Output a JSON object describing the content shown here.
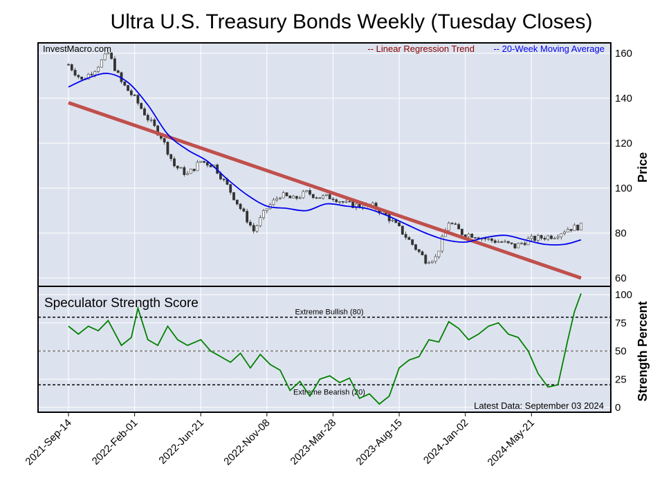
{
  "chart_data": [
    {
      "type": "candlestick",
      "title": "Ultra U.S. Treasury Bonds Weekly (Tuesday Closes)",
      "source_label": "InvestMacro.com",
      "ylabel": "Price",
      "ylim": [
        56,
        165
      ],
      "yticks": [
        60,
        80,
        100,
        120,
        140,
        160
      ],
      "legend_position": "top-right",
      "legend": {
        "regression": "-- Linear Regression Trend",
        "moving_average": "-- 20-Week Moving Average"
      },
      "colors": {
        "regression": "#c0504d",
        "moving_average": "#0000ee",
        "candle_up": "#ffffff",
        "candle_down": "#333333",
        "background": "#dde3ee"
      },
      "regression_line": {
        "start": [
          "2021-09-14",
          138
        ],
        "end": [
          "2024-09-03",
          60
        ]
      },
      "price_points": [
        [
          "2021-09-14",
          155
        ],
        [
          "2021-10-12",
          148
        ],
        [
          "2021-11-09",
          153
        ],
        [
          "2021-12-07",
          160
        ],
        [
          "2022-01-04",
          147
        ],
        [
          "2022-02-01",
          140
        ],
        [
          "2022-03-01",
          131
        ],
        [
          "2022-03-29",
          123
        ],
        [
          "2022-04-26",
          110
        ],
        [
          "2022-05-24",
          106
        ],
        [
          "2022-06-21",
          112
        ],
        [
          "2022-07-19",
          110
        ],
        [
          "2022-08-16",
          101
        ],
        [
          "2022-09-13",
          91
        ],
        [
          "2022-10-11",
          81
        ],
        [
          "2022-11-08",
          91
        ],
        [
          "2022-12-06",
          97
        ],
        [
          "2023-01-03",
          95
        ],
        [
          "2023-01-31",
          98
        ],
        [
          "2023-02-28",
          96
        ],
        [
          "2023-03-28",
          96
        ],
        [
          "2023-04-25",
          93
        ],
        [
          "2023-05-23",
          92
        ],
        [
          "2023-06-20",
          92
        ],
        [
          "2023-07-18",
          88
        ],
        [
          "2023-08-15",
          82
        ],
        [
          "2023-09-12",
          75
        ],
        [
          "2023-10-10",
          68
        ],
        [
          "2023-10-31",
          69
        ],
        [
          "2023-11-28",
          85
        ],
        [
          "2023-12-26",
          80
        ],
        [
          "2024-01-23",
          79
        ],
        [
          "2024-02-20",
          77
        ],
        [
          "2024-03-19",
          76
        ],
        [
          "2024-04-16",
          74
        ],
        [
          "2024-05-14",
          77
        ],
        [
          "2024-06-11",
          78
        ],
        [
          "2024-07-09",
          79
        ],
        [
          "2024-08-06",
          82
        ],
        [
          "2024-09-03",
          83
        ]
      ],
      "moving_average": [
        [
          "2021-09-14",
          145
        ],
        [
          "2021-10-26",
          149
        ],
        [
          "2021-12-07",
          151
        ],
        [
          "2022-01-18",
          147
        ],
        [
          "2022-03-01",
          137
        ],
        [
          "2022-04-12",
          124
        ],
        [
          "2022-05-24",
          117
        ],
        [
          "2022-07-05",
          112
        ],
        [
          "2022-08-16",
          104
        ],
        [
          "2022-09-27",
          97
        ],
        [
          "2022-11-08",
          92
        ],
        [
          "2022-12-20",
          91
        ],
        [
          "2023-01-31",
          90
        ],
        [
          "2023-03-14",
          93
        ],
        [
          "2023-04-25",
          92
        ],
        [
          "2023-06-06",
          91
        ],
        [
          "2023-07-18",
          88
        ],
        [
          "2023-08-29",
          84
        ],
        [
          "2023-10-10",
          80
        ],
        [
          "2023-11-21",
          77
        ],
        [
          "2024-01-02",
          76
        ],
        [
          "2024-02-13",
          78
        ],
        [
          "2024-03-26",
          79
        ],
        [
          "2024-05-07",
          77
        ],
        [
          "2024-06-18",
          75
        ],
        [
          "2024-07-30",
          75
        ],
        [
          "2024-09-03",
          77
        ]
      ]
    },
    {
      "type": "line",
      "title": "Speculator Strength Score",
      "ylabel": "Strength Percent",
      "ylim": [
        -5,
        105
      ],
      "yticks": [
        0,
        25,
        50,
        75,
        100
      ],
      "reference_lines": [
        {
          "label": "Extreme Bullish (80)",
          "value": 80,
          "style": "dashed",
          "color": "#000000"
        },
        {
          "label": "",
          "value": 50,
          "style": "dashed",
          "color": "#777777"
        },
        {
          "label": "Extreme Bearish (20)",
          "value": 20,
          "style": "dashed",
          "color": "#000000"
        }
      ],
      "note": "Latest Data: September 03 2024",
      "colors": {
        "line": "#008000"
      },
      "series": [
        {
          "values": [
            [
              "2021-09-14",
              72
            ],
            [
              "2021-10-05",
              65
            ],
            [
              "2021-10-26",
              72
            ],
            [
              "2021-11-16",
              68
            ],
            [
              "2021-12-07",
              77
            ],
            [
              "2022-01-04",
              55
            ],
            [
              "2022-01-25",
              62
            ],
            [
              "2022-02-08",
              88
            ],
            [
              "2022-03-01",
              60
            ],
            [
              "2022-03-22",
              55
            ],
            [
              "2022-04-12",
              72
            ],
            [
              "2022-05-03",
              60
            ],
            [
              "2022-05-24",
              55
            ],
            [
              "2022-06-21",
              60
            ],
            [
              "2022-07-12",
              50
            ],
            [
              "2022-08-02",
              45
            ],
            [
              "2022-08-23",
              40
            ],
            [
              "2022-09-13",
              48
            ],
            [
              "2022-10-04",
              35
            ],
            [
              "2022-10-25",
              47
            ],
            [
              "2022-11-15",
              38
            ],
            [
              "2022-12-06",
              33
            ],
            [
              "2022-12-27",
              15
            ],
            [
              "2023-01-17",
              23
            ],
            [
              "2023-02-07",
              10
            ],
            [
              "2023-02-28",
              25
            ],
            [
              "2023-03-21",
              28
            ],
            [
              "2023-04-11",
              22
            ],
            [
              "2023-05-02",
              26
            ],
            [
              "2023-05-23",
              8
            ],
            [
              "2023-06-13",
              12
            ],
            [
              "2023-07-04",
              3
            ],
            [
              "2023-07-25",
              10
            ],
            [
              "2023-08-15",
              35
            ],
            [
              "2023-09-05",
              42
            ],
            [
              "2023-09-26",
              45
            ],
            [
              "2023-10-17",
              60
            ],
            [
              "2023-11-07",
              58
            ],
            [
              "2023-11-28",
              76
            ],
            [
              "2023-12-19",
              70
            ],
            [
              "2024-01-09",
              60
            ],
            [
              "2024-01-30",
              65
            ],
            [
              "2024-02-20",
              72
            ],
            [
              "2024-03-12",
              75
            ],
            [
              "2024-04-02",
              65
            ],
            [
              "2024-04-23",
              62
            ],
            [
              "2024-05-14",
              50
            ],
            [
              "2024-06-04",
              30
            ],
            [
              "2024-06-25",
              18
            ],
            [
              "2024-07-16",
              20
            ],
            [
              "2024-08-06",
              60
            ],
            [
              "2024-08-20",
              85
            ],
            [
              "2024-09-03",
              101
            ]
          ]
        }
      ]
    }
  ],
  "xaxis": {
    "tick_labels": [
      "2021-Sep-14",
      "2022-Feb-01",
      "2022-Jun-21",
      "2022-Nov-08",
      "2023-Mar-28",
      "2023-Aug-15",
      "2024-Jan-02",
      "2024-May-21"
    ],
    "tick_dates": [
      "2021-09-14",
      "2022-02-01",
      "2022-06-21",
      "2022-11-08",
      "2023-03-28",
      "2023-08-15",
      "2024-01-02",
      "2024-05-21"
    ]
  }
}
